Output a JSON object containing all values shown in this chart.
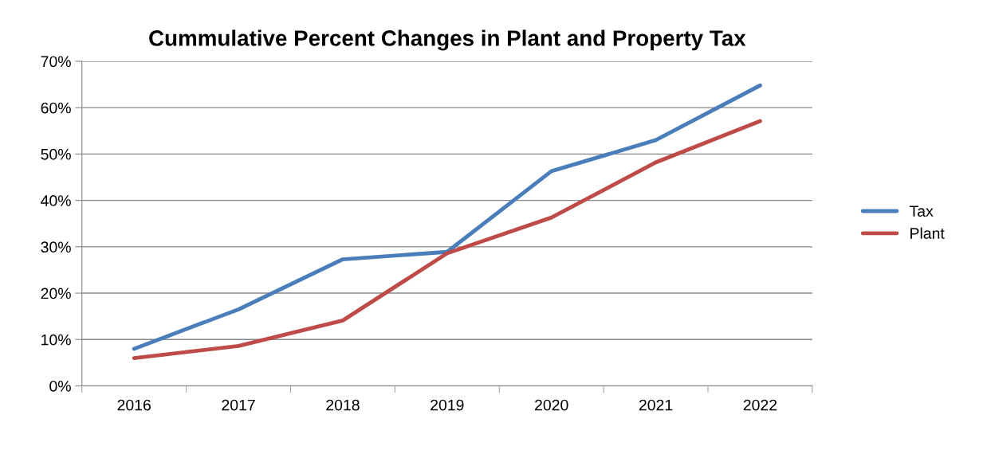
{
  "chart_data": {
    "type": "line",
    "title": "Cummulative Percent Changes in Plant and Property Tax",
    "categories": [
      "2016",
      "2017",
      "2018",
      "2019",
      "2020",
      "2021",
      "2022"
    ],
    "series": [
      {
        "name": "Tax",
        "color": "#4a7ebb",
        "values": [
          8.0,
          16.5,
          27.3,
          28.9,
          46.3,
          53.0,
          64.8
        ]
      },
      {
        "name": "Plant",
        "color": "#be4b48",
        "values": [
          6.0,
          8.6,
          14.1,
          28.6,
          36.3,
          48.2,
          57.1
        ]
      }
    ],
    "ylim": [
      0,
      70
    ],
    "yticks": [
      {
        "value": 0,
        "label": "0%"
      },
      {
        "value": 10,
        "label": "10%"
      },
      {
        "value": 20,
        "label": "20%"
      },
      {
        "value": 30,
        "label": "30%"
      },
      {
        "value": 40,
        "label": "40%"
      },
      {
        "value": 50,
        "label": "50%"
      },
      {
        "value": 60,
        "label": "60%"
      },
      {
        "value": 70,
        "label": "70%"
      }
    ],
    "grid": "y",
    "legend": "right",
    "marker": "none",
    "line_style": "solid"
  }
}
